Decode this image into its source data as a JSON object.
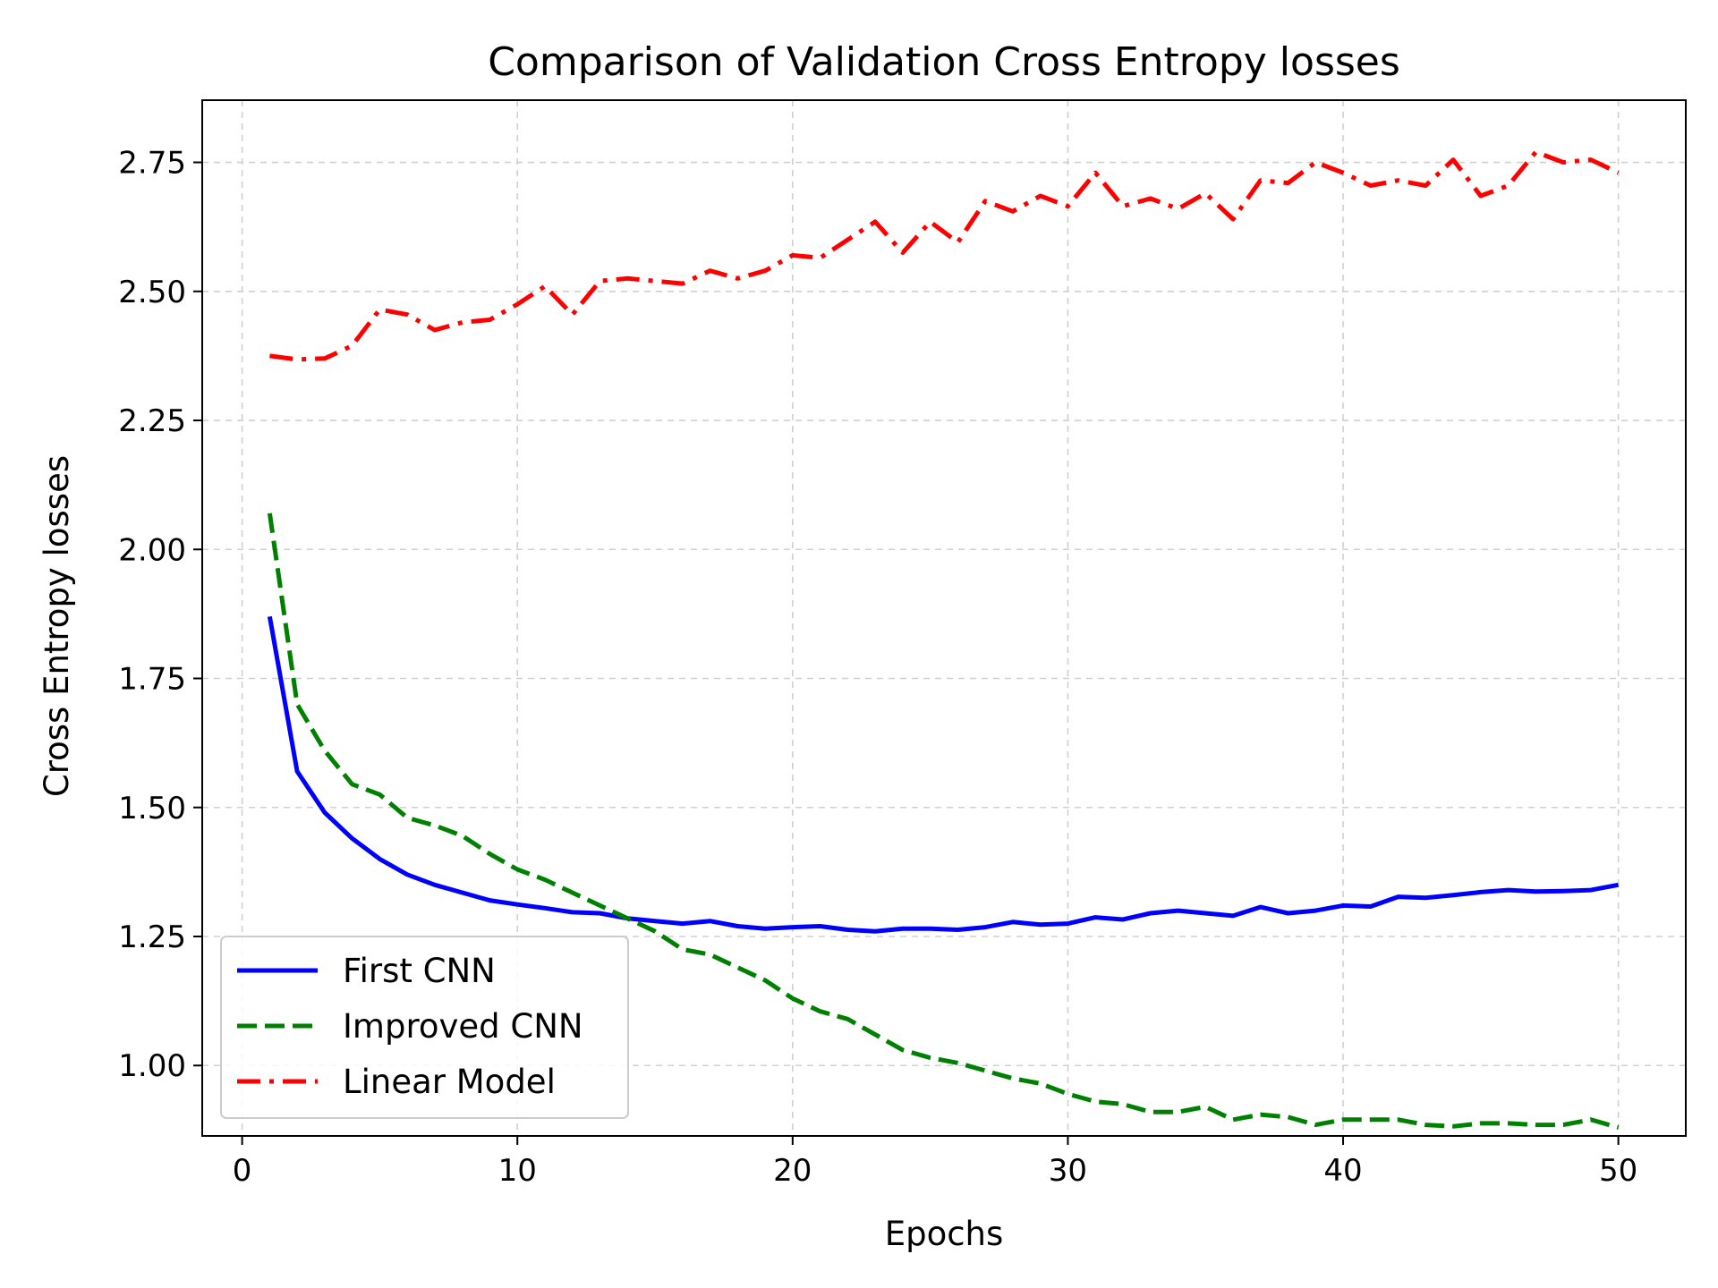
{
  "chart_data": {
    "type": "line",
    "title": "Comparison of Validation Cross Entropy losses",
    "xlabel": "Epochs",
    "ylabel": "Cross Entropy losses",
    "xlim": [
      -1.45,
      52.45
    ],
    "ylim": [
      0.8635,
      2.8705
    ],
    "xticks": [
      0,
      10,
      20,
      30,
      40,
      50
    ],
    "yticks": [
      1.0,
      1.25,
      1.5,
      1.75,
      2.0,
      2.25,
      2.5,
      2.75
    ],
    "xtick_labels": [
      "0",
      "10",
      "20",
      "30",
      "40",
      "50"
    ],
    "ytick_labels": [
      "1.00",
      "1.25",
      "1.50",
      "1.75",
      "2.00",
      "2.25",
      "2.50",
      "2.75"
    ],
    "grid": true,
    "legend_position": "bottom-left",
    "x": [
      1,
      2,
      3,
      4,
      5,
      6,
      7,
      8,
      9,
      10,
      11,
      12,
      13,
      14,
      15,
      16,
      17,
      18,
      19,
      20,
      21,
      22,
      23,
      24,
      25,
      26,
      27,
      28,
      29,
      30,
      31,
      32,
      33,
      34,
      35,
      36,
      37,
      38,
      39,
      40,
      41,
      42,
      43,
      44,
      45,
      46,
      47,
      48,
      49,
      50
    ],
    "series": [
      {
        "name": "First CNN",
        "color": "#0000ff",
        "style": "solid",
        "values": [
          1.87,
          1.57,
          1.49,
          1.44,
          1.4,
          1.37,
          1.35,
          1.335,
          1.32,
          1.312,
          1.305,
          1.297,
          1.295,
          1.285,
          1.28,
          1.275,
          1.28,
          1.27,
          1.265,
          1.268,
          1.27,
          1.263,
          1.26,
          1.265,
          1.265,
          1.263,
          1.268,
          1.278,
          1.273,
          1.275,
          1.287,
          1.283,
          1.295,
          1.3,
          1.295,
          1.29,
          1.307,
          1.295,
          1.3,
          1.31,
          1.308,
          1.327,
          1.325,
          1.33,
          1.336,
          1.34,
          1.337,
          1.338,
          1.34,
          1.35
        ]
      },
      {
        "name": "Improved CNN",
        "color": "#008000",
        "style": "dashed",
        "values": [
          2.07,
          1.7,
          1.61,
          1.545,
          1.525,
          1.48,
          1.465,
          1.445,
          1.41,
          1.38,
          1.36,
          1.335,
          1.31,
          1.285,
          1.26,
          1.225,
          1.215,
          1.19,
          1.165,
          1.13,
          1.105,
          1.09,
          1.06,
          1.03,
          1.015,
          1.005,
          0.99,
          0.975,
          0.965,
          0.945,
          0.93,
          0.925,
          0.91,
          0.91,
          0.92,
          0.895,
          0.905,
          0.9,
          0.885,
          0.895,
          0.895,
          0.895,
          0.885,
          0.882,
          0.888,
          0.888,
          0.885,
          0.885,
          0.895,
          0.88
        ]
      },
      {
        "name": "Linear Model",
        "color": "#ff0000",
        "style": "dashdot",
        "values": [
          2.375,
          2.368,
          2.37,
          2.395,
          2.465,
          2.455,
          2.425,
          2.44,
          2.445,
          2.475,
          2.51,
          2.455,
          2.52,
          2.525,
          2.52,
          2.515,
          2.54,
          2.525,
          2.54,
          2.57,
          2.565,
          2.6,
          2.635,
          2.575,
          2.635,
          2.595,
          2.675,
          2.655,
          2.685,
          2.665,
          2.73,
          2.665,
          2.68,
          2.66,
          2.69,
          2.64,
          2.715,
          2.71,
          2.75,
          2.73,
          2.705,
          2.715,
          2.705,
          2.755,
          2.685,
          2.705,
          2.77,
          2.75,
          2.755,
          2.73
        ]
      }
    ]
  }
}
